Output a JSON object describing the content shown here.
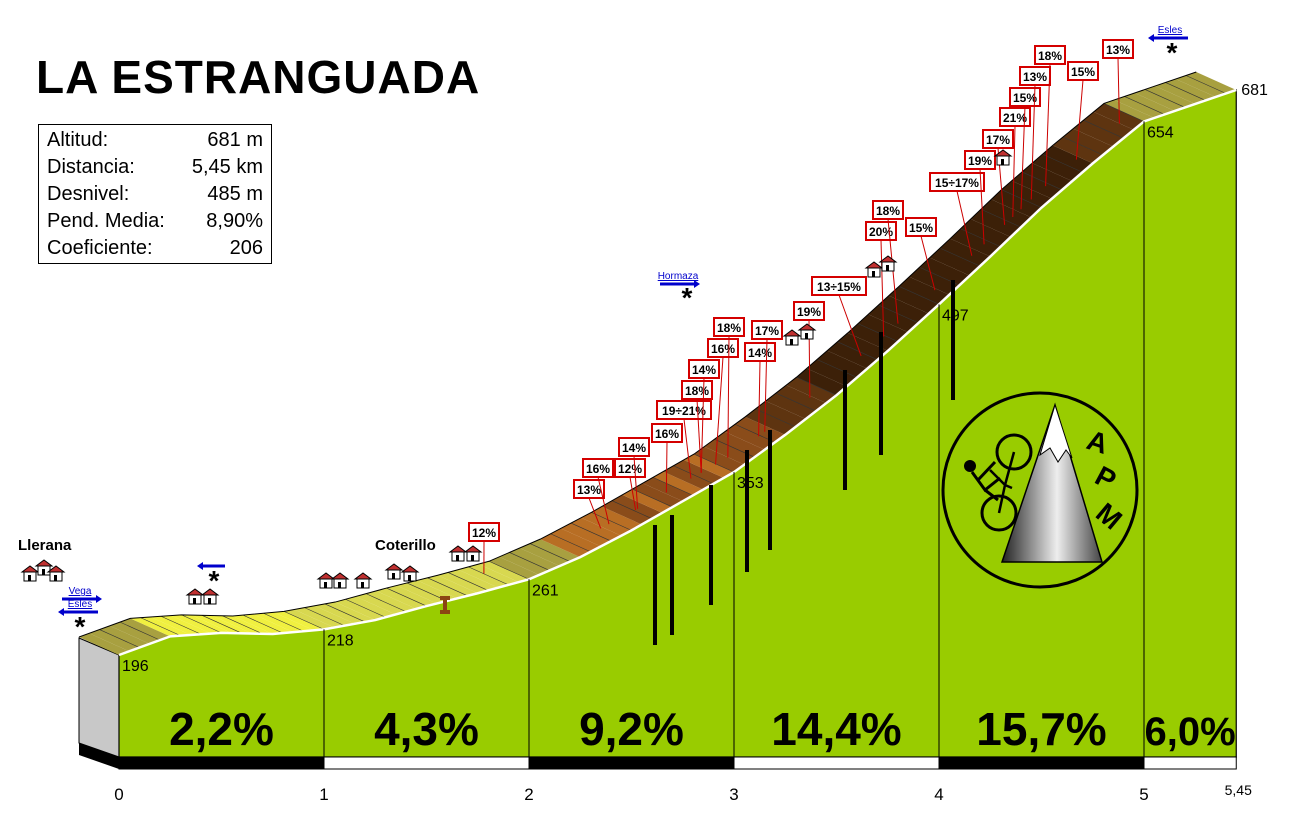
{
  "header": {
    "title": "LA ESTRANGUADA"
  },
  "info": [
    {
      "label": "Altitud:",
      "value": "681 m"
    },
    {
      "label": "Distancia:",
      "value": "5,45 km"
    },
    {
      "label": "Desnivel:",
      "value": "485 m"
    },
    {
      "label": "Pend. Media:",
      "value": "8,90%"
    },
    {
      "label": "Coeficiente:",
      "value": "206"
    }
  ],
  "chart_data": {
    "type": "area",
    "title": "LA ESTRANGUADA",
    "xlabel": "",
    "ylabel": "",
    "xlim": [
      0,
      5.45
    ],
    "x_ticks": [
      "0",
      "1",
      "2",
      "3",
      "4",
      "5",
      "5,45"
    ],
    "profile": [
      {
        "x": 0,
        "y": 196
      },
      {
        "x": 0.25,
        "y": 212
      },
      {
        "x": 0.5,
        "y": 215
      },
      {
        "x": 0.75,
        "y": 214
      },
      {
        "x": 1,
        "y": 218
      },
      {
        "x": 1.25,
        "y": 226
      },
      {
        "x": 1.5,
        "y": 238
      },
      {
        "x": 1.75,
        "y": 249
      },
      {
        "x": 2,
        "y": 261
      },
      {
        "x": 2.25,
        "y": 280
      },
      {
        "x": 2.5,
        "y": 303
      },
      {
        "x": 2.75,
        "y": 328
      },
      {
        "x": 3,
        "y": 353
      },
      {
        "x": 3.25,
        "y": 385
      },
      {
        "x": 3.5,
        "y": 419
      },
      {
        "x": 3.75,
        "y": 457
      },
      {
        "x": 4,
        "y": 497
      },
      {
        "x": 4.25,
        "y": 538
      },
      {
        "x": 4.5,
        "y": 580
      },
      {
        "x": 4.75,
        "y": 618
      },
      {
        "x": 5,
        "y": 654
      },
      {
        "x": 5.25,
        "y": 669
      },
      {
        "x": 5.45,
        "y": 681
      }
    ],
    "km_markers": [
      {
        "x": 0,
        "altitude": "196",
        "slope": ""
      },
      {
        "x": 1,
        "altitude": "218",
        "slope": "2,2%"
      },
      {
        "x": 2,
        "altitude": "261",
        "slope": "4,3%"
      },
      {
        "x": 3,
        "altitude": "353",
        "slope": "9,2%"
      },
      {
        "x": 4,
        "altitude": "497",
        "slope": "14,4%"
      },
      {
        "x": 5,
        "altitude": "654",
        "slope": "15,7%"
      },
      {
        "x": 5.45,
        "altitude": "681",
        "slope": "6,0%"
      }
    ],
    "ramps": [
      {
        "x": 1.78,
        "label": "12%"
      },
      {
        "x": 2.35,
        "label": "13%"
      },
      {
        "x": 2.39,
        "label": "16%"
      },
      {
        "x": 2.52,
        "label": "12%"
      },
      {
        "x": 2.53,
        "label": "14%"
      },
      {
        "x": 2.67,
        "label": "16%"
      },
      {
        "x": 2.79,
        "label": "19÷21%"
      },
      {
        "x": 2.84,
        "label": "18%"
      },
      {
        "x": 2.84,
        "label": "14%"
      },
      {
        "x": 2.91,
        "label": "16%"
      },
      {
        "x": 2.97,
        "label": "18%"
      },
      {
        "x": 3.12,
        "label": "14%"
      },
      {
        "x": 3.15,
        "label": "17%"
      },
      {
        "x": 3.37,
        "label": "19%"
      },
      {
        "x": 3.62,
        "label": "13÷15%"
      },
      {
        "x": 3.73,
        "label": "20%"
      },
      {
        "x": 3.8,
        "label": "18%"
      },
      {
        "x": 3.98,
        "label": "15%"
      },
      {
        "x": 4.16,
        "label": "15÷17%"
      },
      {
        "x": 4.22,
        "label": "19%"
      },
      {
        "x": 4.32,
        "label": "17%"
      },
      {
        "x": 4.36,
        "label": "21%"
      },
      {
        "x": 4.4,
        "label": "15%"
      },
      {
        "x": 4.45,
        "label": "13%"
      },
      {
        "x": 4.52,
        "label": "18%"
      },
      {
        "x": 4.67,
        "label": "15%"
      },
      {
        "x": 4.88,
        "label": "13%"
      }
    ],
    "places": [
      {
        "name": "Llerana",
        "x": -0.2
      },
      {
        "name": "Coterillo",
        "x": 1.37
      }
    ],
    "junctions": [
      {
        "label": "Vega",
        "x": -0.1,
        "direction": "right"
      },
      {
        "label": "Esles",
        "x": -0.1,
        "direction": "left"
      },
      {
        "label": "",
        "x": 0.47,
        "direction": "left"
      },
      {
        "label": "Hormaza",
        "x": 2.75,
        "direction": "right"
      },
      {
        "label": "Esles",
        "x": 5.2,
        "direction": "left"
      }
    ],
    "logo": {
      "text": "APM"
    }
  }
}
